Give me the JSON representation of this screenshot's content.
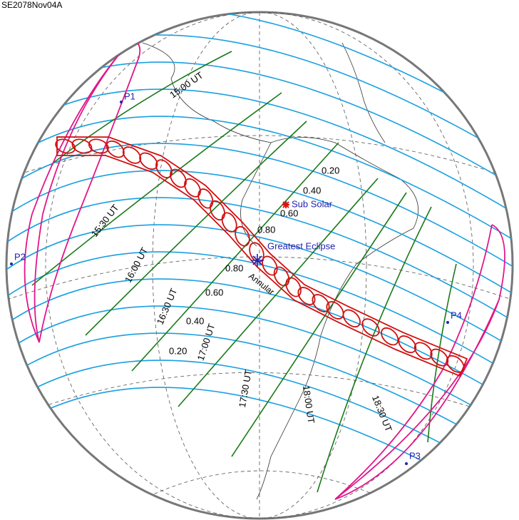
{
  "title": "SE2078Nov04A",
  "contacts": [
    "P1",
    "P2",
    "P3",
    "P4"
  ],
  "time_labels": [
    "15:00 UT",
    "15:30 UT",
    "16:00 UT",
    "16:30 UT",
    "17:00 UT",
    "17:30 UT",
    "18:00 UT",
    "18:30 UT"
  ],
  "magnitude_labels_north": [
    "0.20",
    "0.40",
    "0.60",
    "0.80"
  ],
  "magnitude_labels_south": [
    "0.80",
    "0.60",
    "0.40",
    "0.20"
  ],
  "markers": {
    "sub_solar": "Sub Solar",
    "greatest_eclipse": "Greatest Eclipse",
    "annular": "Annular"
  }
}
